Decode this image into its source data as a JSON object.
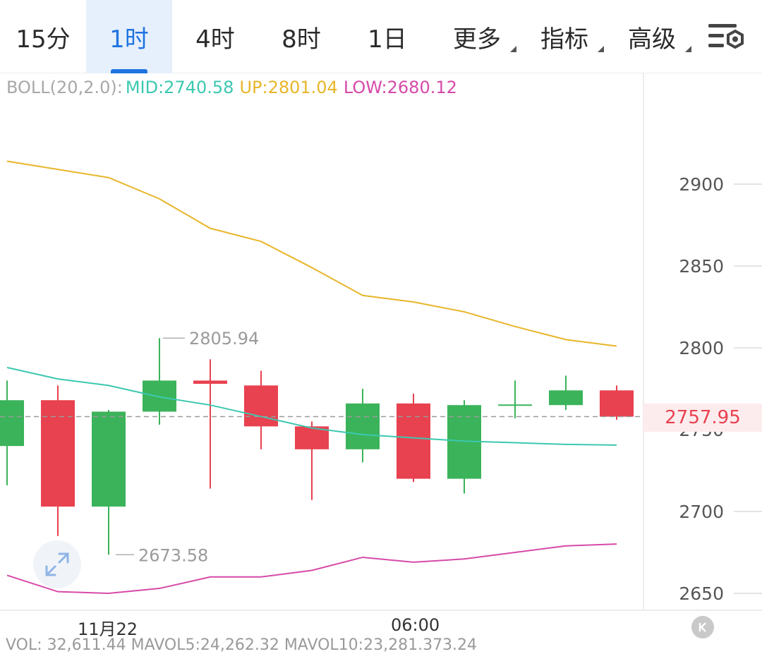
{
  "tabs": [
    {
      "label": "15分",
      "active": false
    },
    {
      "label": "1时",
      "active": true
    },
    {
      "label": "4时",
      "active": false
    },
    {
      "label": "8时",
      "active": false
    },
    {
      "label": "1日",
      "active": false
    },
    {
      "label": "更多",
      "active": false,
      "dropdown": true
    },
    {
      "label": "指标",
      "active": false,
      "dropdown": true
    },
    {
      "label": "高级",
      "active": false,
      "dropdown": true
    }
  ],
  "settings_icon": "chart-settings-icon",
  "boll": {
    "name": "BOLL(20,2.0):",
    "mid_label": "MID:2740.58",
    "up_label": "UP:2801.04",
    "low_label": "LOW:2680.12"
  },
  "colors": {
    "up_candle": "#3bb35a",
    "down_candle": "#e8414f",
    "boll_mid": "#3cc8b0",
    "boll_up": "#e8b62a",
    "boll_low": "#d64aa8",
    "accent": "#1f74e0"
  },
  "chart_data": {
    "type": "candlestick",
    "x_labels": [
      {
        "label": "11月22",
        "index": 2
      },
      {
        "label": "06:00",
        "index": 8
      }
    ],
    "y_ticks": [
      2650,
      2700,
      2750,
      2800,
      2850,
      2900
    ],
    "ylim": [
      2640,
      2960
    ],
    "current_price": "2757.95",
    "max_label": "2805.94",
    "min_label": "2673.58",
    "candles": [
      {
        "open": 2740,
        "close": 2768,
        "high": 2780,
        "low": 2716
      },
      {
        "open": 2768,
        "close": 2703,
        "high": 2777,
        "low": 2685
      },
      {
        "open": 2703,
        "close": 2761,
        "high": 2762,
        "low": 2673.58
      },
      {
        "open": 2761,
        "close": 2780,
        "high": 2805.94,
        "low": 2753
      },
      {
        "open": 2780,
        "close": 2778,
        "high": 2793,
        "low": 2714
      },
      {
        "open": 2777,
        "close": 2752,
        "high": 2786,
        "low": 2738
      },
      {
        "open": 2752,
        "close": 2738,
        "high": 2755,
        "low": 2707
      },
      {
        "open": 2738,
        "close": 2766,
        "high": 2775,
        "low": 2730
      },
      {
        "open": 2766,
        "close": 2720,
        "high": 2772,
        "low": 2718
      },
      {
        "open": 2720,
        "close": 2765,
        "high": 2768,
        "low": 2711
      },
      {
        "open": 2765,
        "close": 2765,
        "high": 2780,
        "low": 2757
      },
      {
        "open": 2765,
        "close": 2774,
        "high": 2783,
        "low": 2762
      },
      {
        "open": 2774,
        "close": 2757.95,
        "high": 2777,
        "low": 2756
      }
    ],
    "boll_mid": [
      2788,
      2781,
      2777,
      2770,
      2765,
      2758,
      2751,
      2747,
      2745,
      2743,
      2742,
      2741,
      2740.58
    ],
    "boll_up": [
      2914,
      2909,
      2904,
      2891,
      2873,
      2865,
      2849,
      2832,
      2828,
      2822,
      2813,
      2805,
      2801.04
    ],
    "boll_low": [
      2661,
      2651,
      2650,
      2653,
      2660,
      2660,
      2664,
      2672,
      2669,
      2671,
      2675,
      2679,
      2680.12
    ]
  },
  "volume_peek": "VOL: 32,611.44  MAVOL5:24,262.32  MAVOL10:23,281.373.24"
}
